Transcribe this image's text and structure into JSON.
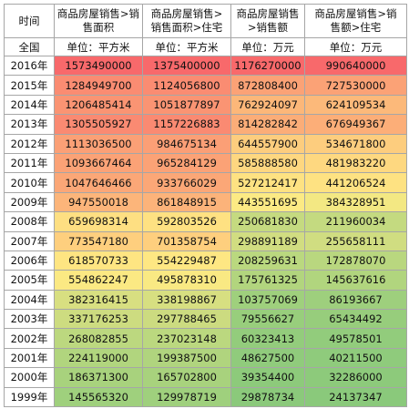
{
  "headers": {
    "time": "时间",
    "col1": [
      "商品房屋销售>销",
      "售面积"
    ],
    "col2": [
      "商品房屋销售>",
      "销售面积>住宅"
    ],
    "col3": [
      "商品房屋销售",
      ">销售额"
    ],
    "col4": [
      "商品房屋销售>销",
      "售额>住宅"
    ]
  },
  "units": {
    "region": "全国",
    "col1": "单位：平方米",
    "col2": "单位：平方米",
    "col3": "单位：万元",
    "col4": "单位：万元"
  },
  "rows": [
    {
      "year": "2016年",
      "v1": "1573490000",
      "v2": "1375400000",
      "v3": "1176270000",
      "v4": "990640000",
      "c1": "#f8696b",
      "c2": "#f8696b",
      "c3": "#f8696b",
      "c4": "#f8696b"
    },
    {
      "year": "2015年",
      "v1": "1284949700",
      "v2": "1124056800",
      "v3": "872808400",
      "v4": "727530000",
      "c1": "#fa8c72",
      "c2": "#fa8c72",
      "c3": "#fba276",
      "c4": "#fba276"
    },
    {
      "year": "2014年",
      "v1": "1206485414",
      "v2": "1051877897",
      "v3": "762924097",
      "v4": "624109534",
      "c1": "#fa9473",
      "c2": "#fa9473",
      "c3": "#fcb779",
      "c4": "#fcb97a"
    },
    {
      "year": "2013年",
      "v1": "1305505927",
      "v2": "1157226883",
      "v3": "814282842",
      "v4": "676949367",
      "c1": "#fa8a72",
      "c2": "#fa8a72",
      "c3": "#fbad78",
      "c4": "#fcae78"
    },
    {
      "year": "2012年",
      "v1": "1113036500",
      "v2": "984675134",
      "v3": "644557900",
      "v4": "534671800",
      "c1": "#fba076",
      "c2": "#fb9f76",
      "c3": "#fdcd7e",
      "c4": "#fdcd7e"
    },
    {
      "year": "2011年",
      "v1": "1093667464",
      "v2": "965284129",
      "v3": "585888580",
      "v4": "481983220",
      "c1": "#fba276",
      "c2": "#fba276",
      "c3": "#fed780",
      "c4": "#fed880"
    },
    {
      "year": "2010年",
      "v1": "1047646466",
      "v2": "933766029",
      "v3": "527212417",
      "v4": "441206524",
      "c1": "#fba777",
      "c2": "#fba777",
      "c3": "#fee282",
      "c4": "#fee282"
    },
    {
      "year": "2009年",
      "v1": "947550018",
      "v2": "861848915",
      "v3": "443551695",
      "v4": "384328951",
      "c1": "#fcb57a",
      "c2": "#fcb37a",
      "c3": "#fcea84",
      "c4": "#f3e883"
    },
    {
      "year": "2008年",
      "v1": "659698314",
      "v2": "592803526",
      "v3": "250681830",
      "v4": "211960034",
      "c1": "#fedf82",
      "c2": "#fee182",
      "c3": "#c5da80",
      "c4": "#c4da80"
    },
    {
      "year": "2007年",
      "v1": "773547180",
      "v2": "701358754",
      "v3": "298891189",
      "v4": "255658111",
      "c1": "#fecf7e",
      "c2": "#fecf7e",
      "c3": "#d1dd81",
      "c4": "#d0dd81"
    },
    {
      "year": "2006年",
      "v1": "618570733",
      "v2": "554229487",
      "v3": "208259631",
      "v4": "172878070",
      "c1": "#fee582",
      "c2": "#fee783",
      "c3": "#bad87f",
      "c4": "#b9d77f"
    },
    {
      "year": "2005年",
      "v1": "554862247",
      "v2": "495878310",
      "v3": "175761325",
      "v4": "145637616",
      "c1": "#fbe983",
      "c2": "#f9e983",
      "c3": "#b2d57e",
      "c4": "#b1d57e"
    },
    {
      "year": "2004年",
      "v1": "382316415",
      "v2": "338198867",
      "v3": "103757069",
      "v4": "86193667",
      "c1": "#d8df81",
      "c2": "#d7df81",
      "c3": "#9fd07d",
      "c4": "#9ecf7d"
    },
    {
      "year": "2003年",
      "v1": "337176253",
      "v2": "297788465",
      "v3": "79556627",
      "v4": "65434492",
      "c1": "#cddc80",
      "c2": "#ccdb80",
      "c3": "#98ce7c",
      "c4": "#97cd7c"
    },
    {
      "year": "2002年",
      "v1": "268082855",
      "v2": "237023148",
      "v3": "60323413",
      "v4": "49578501",
      "c1": "#bcd87f",
      "c2": "#bbd87f",
      "c3": "#93cc7c",
      "c4": "#92cc7c"
    },
    {
      "year": "2001年",
      "v1": "224119000",
      "v2": "199387500",
      "v3": "48627500",
      "v4": "40211500",
      "c1": "#b1d57e",
      "c2": "#b0d47e",
      "c3": "#90cb7c",
      "c4": "#8fcb7c"
    },
    {
      "year": "2000年",
      "v1": "186371300",
      "v2": "165702800",
      "v3": "39354400",
      "v4": "32286000",
      "c1": "#a8d27d",
      "c2": "#a8d27d",
      "c3": "#8dca7b",
      "c4": "#8dca7b"
    },
    {
      "year": "1999年",
      "v1": "145565320",
      "v2": "129978719",
      "v3": "29878734",
      "v4": "24137347",
      "c1": "#9fd07d",
      "c2": "#9fd07d",
      "c3": "#8bc97b",
      "c4": "#8ac97b"
    }
  ]
}
